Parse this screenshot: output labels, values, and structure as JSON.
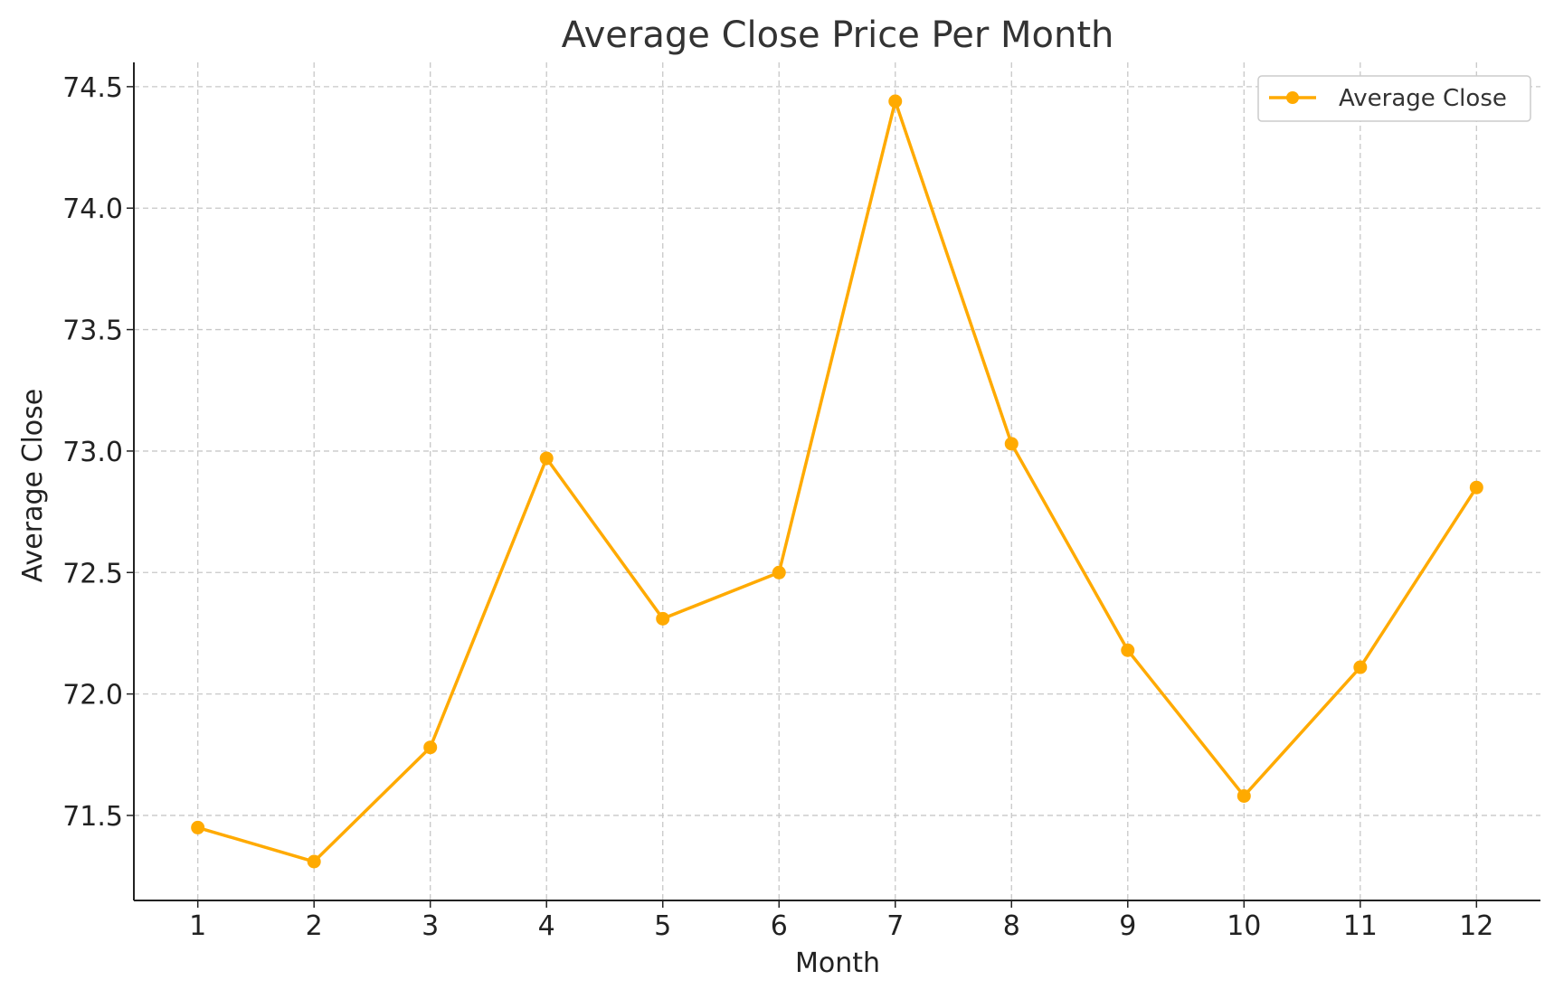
{
  "chart_data": {
    "type": "line",
    "title": "Average Close Price Per Month",
    "xlabel": "Month",
    "ylabel": "Average Close",
    "x": [
      1,
      2,
      3,
      4,
      5,
      6,
      7,
      8,
      9,
      10,
      11,
      12
    ],
    "x_tick_labels": [
      "1",
      "2",
      "3",
      "4",
      "5",
      "6",
      "7",
      "8",
      "9",
      "10",
      "11",
      "12"
    ],
    "y_ticks": [
      71.5,
      72.0,
      72.5,
      73.0,
      73.5,
      74.0,
      74.5
    ],
    "y_tick_labels": [
      "71.5",
      "72.0",
      "72.5",
      "73.0",
      "73.5",
      "74.0",
      "74.5"
    ],
    "xlim": [
      0.45,
      12.55
    ],
    "ylim": [
      71.15,
      74.6
    ],
    "grid": true,
    "legend_position": "top-right",
    "series": [
      {
        "name": "Average Close",
        "color": "#FFAA00",
        "marker": "circle",
        "values": [
          71.45,
          71.31,
          71.78,
          72.97,
          72.31,
          72.5,
          74.44,
          73.03,
          72.18,
          71.58,
          72.11,
          72.85
        ]
      }
    ]
  }
}
